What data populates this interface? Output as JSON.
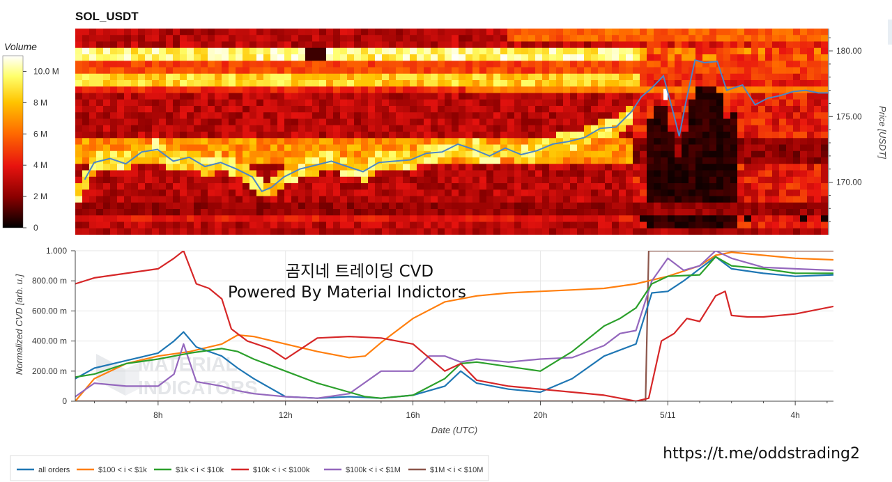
{
  "chart_data": [
    {
      "type": "heatmap",
      "title": "SOL_USDT",
      "colorbar": {
        "label": "Volume",
        "range": [
          0,
          11000000
        ],
        "ticks": [
          {
            "v": 10000000,
            "label": "10.0 M"
          },
          {
            "v": 8000000,
            "label": "8 M"
          },
          {
            "v": 6000000,
            "label": "6 M"
          },
          {
            "v": 4000000,
            "label": "4 M"
          },
          {
            "v": 2000000,
            "label": "2 M"
          },
          {
            "v": 0,
            "label": "0"
          }
        ],
        "colors": [
          "#000000",
          "#8b0000",
          "#e8130f",
          "#ff6a00",
          "#ffc400",
          "#ffff6a",
          "#ffffff"
        ]
      },
      "ylabel": "Price [USDT]",
      "y_axis_position": "right",
      "ylim": [
        166,
        181.7
      ],
      "yticks": [
        {
          "v": 180,
          "label": "180.00"
        },
        {
          "v": 175,
          "label": "175.00"
        },
        {
          "v": 170,
          "label": "170.00"
        }
      ],
      "price_line_color": "#4a86c8",
      "price_series": {
        "t": [
          5.7,
          6.0,
          6.5,
          7.0,
          7.5,
          8.0,
          8.5,
          9.0,
          9.5,
          10.0,
          10.5,
          11.0,
          11.3,
          11.6,
          12.0,
          12.5,
          13.0,
          13.5,
          14.0,
          14.5,
          15.0,
          15.5,
          16.0,
          16.5,
          17.0,
          17.5,
          18.0,
          18.5,
          19.0,
          19.5,
          20.0,
          20.5,
          21.0,
          21.5,
          22.0,
          22.5,
          23.0,
          23.3,
          23.6,
          24.0,
          24.3,
          24.5,
          24.7,
          25.0,
          25.3,
          25.7,
          26.0,
          26.5,
          26.9,
          27.3,
          27.7,
          28.1,
          28.5,
          28.9,
          29.2
        ],
        "price": [
          170.2,
          171.5,
          171.8,
          171.4,
          172.3,
          172.5,
          171.6,
          171.9,
          171.2,
          171.5,
          171.0,
          170.4,
          169.3,
          169.6,
          170.4,
          171.0,
          171.3,
          171.6,
          171.2,
          170.8,
          171.5,
          171.6,
          171.7,
          172.2,
          172.3,
          172.9,
          172.5,
          172.0,
          172.6,
          172.1,
          172.4,
          172.9,
          173.1,
          173.4,
          174.1,
          174.2,
          175.4,
          176.5,
          177.1,
          178.1,
          175.4,
          173.5,
          176.0,
          179.3,
          179.1,
          179.2,
          177.0,
          177.4,
          175.9,
          176.4,
          176.6,
          176.9,
          177.0,
          176.8,
          176.8
        ]
      },
      "heatmap_bands": [
        {
          "price_low": 179.4,
          "price_high": 180.4,
          "volume": 9500000
        },
        {
          "price_low": 178.5,
          "price_high": 179.4,
          "volume": 4800000
        },
        {
          "price_low": 177.5,
          "price_high": 178.5,
          "volume": 8000000
        },
        {
          "price_low": 176.6,
          "price_high": 177.5,
          "volume": 4200000
        },
        {
          "price_low": 171.5,
          "price_high": 173.3,
          "volume": 6500000
        },
        {
          "price_low": 166.8,
          "price_high": 167.7,
          "volume": 3800000
        }
      ]
    },
    {
      "type": "line",
      "ylabel": "Normalized CVD [arb. u.]",
      "xlabel": "Date (UTC)",
      "ylim": [
        0,
        1.0
      ],
      "yticks": [
        {
          "v": 1.0,
          "label": "1.000"
        },
        {
          "v": 0.8,
          "label": "800.00 m"
        },
        {
          "v": 0.6,
          "label": "600.00 m"
        },
        {
          "v": 0.4,
          "label": "400.00 m"
        },
        {
          "v": 0.2,
          "label": "200.00 m"
        },
        {
          "v": 0,
          "label": "0"
        }
      ],
      "xlim": [
        5.4,
        29.2
      ],
      "xticks": [
        {
          "v": 8,
          "label": "8h"
        },
        {
          "v": 12,
          "label": "12h"
        },
        {
          "v": 16,
          "label": "16h"
        },
        {
          "v": 20,
          "label": "20h"
        },
        {
          "v": 24,
          "label": "5/11"
        },
        {
          "v": 28,
          "label": "4h"
        }
      ],
      "legend_position": "bottom",
      "series": [
        {
          "name": "all orders",
          "color": "#1f77b4",
          "x": [
            5.4,
            6.0,
            7.0,
            8.0,
            8.5,
            8.8,
            9.2,
            10.0,
            10.5,
            11.0,
            12.0,
            13.0,
            14.0,
            15.0,
            16.0,
            17.0,
            17.5,
            18.0,
            19.0,
            20.0,
            21.0,
            22.0,
            23.0,
            23.5,
            24.0,
            24.5,
            25.0,
            25.5,
            26.0,
            27.0,
            28.0,
            29.2
          ],
          "y": [
            0.15,
            0.22,
            0.27,
            0.32,
            0.4,
            0.46,
            0.36,
            0.3,
            0.22,
            0.15,
            0.03,
            0.02,
            0.03,
            0.02,
            0.04,
            0.1,
            0.2,
            0.12,
            0.08,
            0.06,
            0.15,
            0.3,
            0.38,
            0.72,
            0.73,
            0.8,
            0.88,
            0.96,
            0.88,
            0.85,
            0.83,
            0.84
          ]
        },
        {
          "name": "$100 < i < $1k",
          "color": "#ff7f0e",
          "x": [
            5.4,
            6.0,
            7.0,
            8.0,
            9.0,
            10.0,
            10.5,
            11.0,
            12.0,
            13.0,
            14.0,
            14.5,
            15.0,
            16.0,
            17.0,
            18.0,
            19.0,
            20.0,
            21.0,
            22.0,
            23.0,
            24.0,
            25.0,
            25.5,
            26.0,
            27.0,
            28.0,
            29.2
          ],
          "y": [
            0.0,
            0.15,
            0.25,
            0.3,
            0.33,
            0.38,
            0.44,
            0.43,
            0.38,
            0.33,
            0.29,
            0.3,
            0.39,
            0.55,
            0.66,
            0.7,
            0.72,
            0.73,
            0.74,
            0.75,
            0.78,
            0.83,
            0.9,
            0.97,
            0.99,
            0.97,
            0.95,
            0.94
          ]
        },
        {
          "name": "$1k < i < $10k",
          "color": "#2ca02c",
          "x": [
            5.4,
            6.0,
            7.0,
            8.0,
            9.0,
            10.0,
            10.5,
            11.0,
            12.0,
            13.0,
            14.0,
            14.5,
            15.0,
            16.0,
            17.0,
            17.5,
            18.0,
            19.0,
            20.0,
            21.0,
            22.0,
            22.5,
            23.0,
            23.5,
            24.0,
            25.0,
            25.5,
            26.0,
            27.0,
            28.0,
            29.2
          ],
          "y": [
            0.16,
            0.18,
            0.25,
            0.28,
            0.32,
            0.35,
            0.33,
            0.28,
            0.2,
            0.12,
            0.06,
            0.03,
            0.02,
            0.04,
            0.15,
            0.25,
            0.26,
            0.23,
            0.2,
            0.33,
            0.5,
            0.55,
            0.62,
            0.78,
            0.83,
            0.84,
            0.96,
            0.9,
            0.88,
            0.85,
            0.85
          ]
        },
        {
          "name": "$10k < i < $100k",
          "color": "#d62728",
          "x": [
            5.4,
            6.0,
            7.0,
            8.0,
            8.5,
            8.8,
            9.2,
            9.6,
            10.0,
            10.3,
            10.8,
            11.5,
            12.0,
            13.0,
            14.0,
            15.0,
            16.0,
            17.0,
            17.5,
            18.0,
            19.0,
            20.0,
            21.0,
            22.0,
            22.5,
            23.0,
            23.4,
            23.8,
            24.2,
            24.6,
            25.0,
            25.5,
            25.8,
            26.0,
            26.5,
            27.0,
            28.0,
            29.2
          ],
          "y": [
            0.78,
            0.82,
            0.85,
            0.88,
            0.95,
            1.0,
            0.78,
            0.75,
            0.68,
            0.48,
            0.4,
            0.35,
            0.28,
            0.42,
            0.43,
            0.42,
            0.38,
            0.2,
            0.25,
            0.14,
            0.1,
            0.08,
            0.06,
            0.04,
            0.02,
            0.0,
            0.02,
            0.4,
            0.45,
            0.55,
            0.53,
            0.7,
            0.73,
            0.57,
            0.56,
            0.56,
            0.58,
            0.63
          ]
        },
        {
          "name": "$100k < i < $1M",
          "color": "#9467bd",
          "x": [
            5.4,
            6.0,
            7.0,
            8.0,
            8.5,
            8.8,
            9.2,
            10.0,
            10.5,
            11.0,
            12.0,
            13.0,
            14.0,
            15.0,
            16.0,
            16.5,
            17.0,
            17.5,
            18.0,
            19.0,
            20.0,
            21.0,
            22.0,
            22.5,
            23.0,
            23.5,
            24.0,
            24.5,
            25.0,
            25.5,
            26.0,
            27.0,
            28.0,
            29.2
          ],
          "y": [
            0.03,
            0.12,
            0.1,
            0.1,
            0.18,
            0.38,
            0.13,
            0.1,
            0.07,
            0.05,
            0.03,
            0.02,
            0.05,
            0.2,
            0.2,
            0.3,
            0.3,
            0.26,
            0.28,
            0.26,
            0.28,
            0.29,
            0.37,
            0.45,
            0.47,
            0.8,
            0.95,
            0.87,
            0.9,
            1.0,
            0.95,
            0.89,
            0.88,
            0.87
          ]
        },
        {
          "name": "$1M < i < $10M",
          "color": "#8c564b",
          "x": [
            5.4,
            23.3,
            23.4,
            29.2
          ],
          "y": [
            0.0,
            0.0,
            1.0,
            1.0
          ]
        }
      ]
    }
  ],
  "annotation": {
    "line1": "곰지네 트레이딩 CVD",
    "line2": "Powered By Material Indictors"
  },
  "watermark": {
    "line1": "MATERIAL",
    "line2": "INDICATORS"
  },
  "footer_link": "https://t.me/oddstrading2"
}
